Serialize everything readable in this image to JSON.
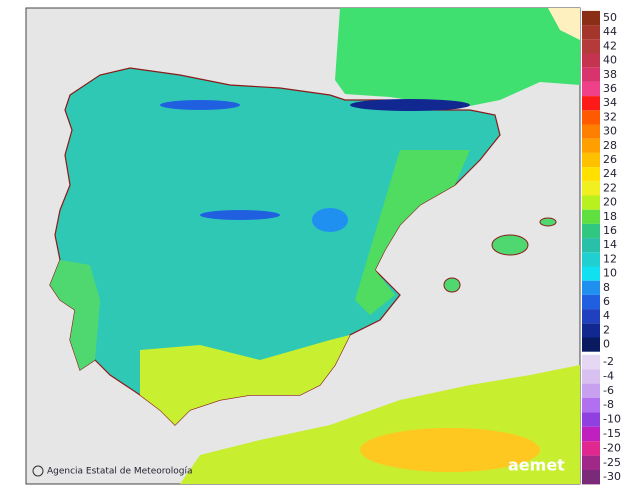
{
  "credit": "Agencia Estatal de Meteorología",
  "logo": "aemet",
  "legend": {
    "upper": [
      {
        "label": "50",
        "color": "#8b2e16"
      },
      {
        "label": "44",
        "color": "#a3352a"
      },
      {
        "label": "42",
        "color": "#b53a3a"
      },
      {
        "label": "40",
        "color": "#c4344f"
      },
      {
        "label": "38",
        "color": "#d8336d"
      },
      {
        "label": "36",
        "color": "#f0408a"
      },
      {
        "label": "34",
        "color": "#ff1a1a"
      },
      {
        "label": "32",
        "color": "#ff5a00"
      },
      {
        "label": "30",
        "color": "#ff8000"
      },
      {
        "label": "28",
        "color": "#ffa000"
      },
      {
        "label": "26",
        "color": "#ffc000"
      },
      {
        "label": "24",
        "color": "#ffe000"
      },
      {
        "label": "22",
        "color": "#f0f020"
      },
      {
        "label": "20",
        "color": "#b8f020"
      },
      {
        "label": "18",
        "color": "#60e040"
      },
      {
        "label": "16",
        "color": "#30c880"
      },
      {
        "label": "14",
        "color": "#28c0a8"
      },
      {
        "label": "12",
        "color": "#20d0d0"
      },
      {
        "label": "10",
        "color": "#10e0f0"
      },
      {
        "label": "8",
        "color": "#2090f0"
      },
      {
        "label": "6",
        "color": "#2060e0"
      },
      {
        "label": "4",
        "color": "#2040c0"
      },
      {
        "label": "2",
        "color": "#102890"
      },
      {
        "label": "0",
        "color": "#0a1a60"
      }
    ],
    "lower": [
      {
        "label": "-2",
        "color": "#e6d8f4"
      },
      {
        "label": "-4",
        "color": "#d8c0f0"
      },
      {
        "label": "-6",
        "color": "#c8a0f0"
      },
      {
        "label": "-8",
        "color": "#b070f0"
      },
      {
        "label": "-10",
        "color": "#9040e0"
      },
      {
        "label": "-15",
        "color": "#c020c0"
      },
      {
        "label": "-20",
        "color": "#e02890"
      },
      {
        "label": "-25",
        "color": "#a02888"
      },
      {
        "label": "-30",
        "color": "#7a2a78"
      }
    ]
  }
}
